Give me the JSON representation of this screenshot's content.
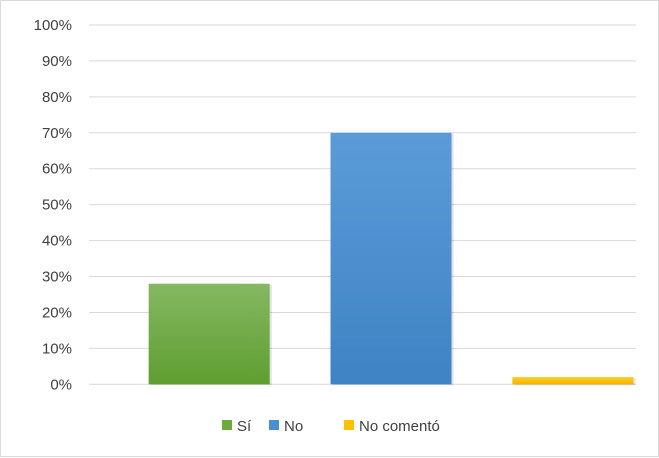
{
  "chart_data": {
    "type": "bar",
    "categories": [
      "Sí",
      "No",
      "No comentó"
    ],
    "values": [
      28,
      70,
      2
    ],
    "ylim": [
      0,
      100
    ],
    "yticks": [
      "0%",
      "10%",
      "20%",
      "30%",
      "40%",
      "50%",
      "60%",
      "70%",
      "80%",
      "90%",
      "100%"
    ],
    "grid": true,
    "legend": "bottom",
    "colors": [
      "#6aab3c",
      "#4a8fd4",
      "#ffc000"
    ],
    "gradient_tops": [
      "#85b862",
      "#5b9bd9",
      "#ffcb22"
    ],
    "gradient_bottoms": [
      "#5f9e31",
      "#3f83c4",
      "#f4b400"
    ]
  }
}
